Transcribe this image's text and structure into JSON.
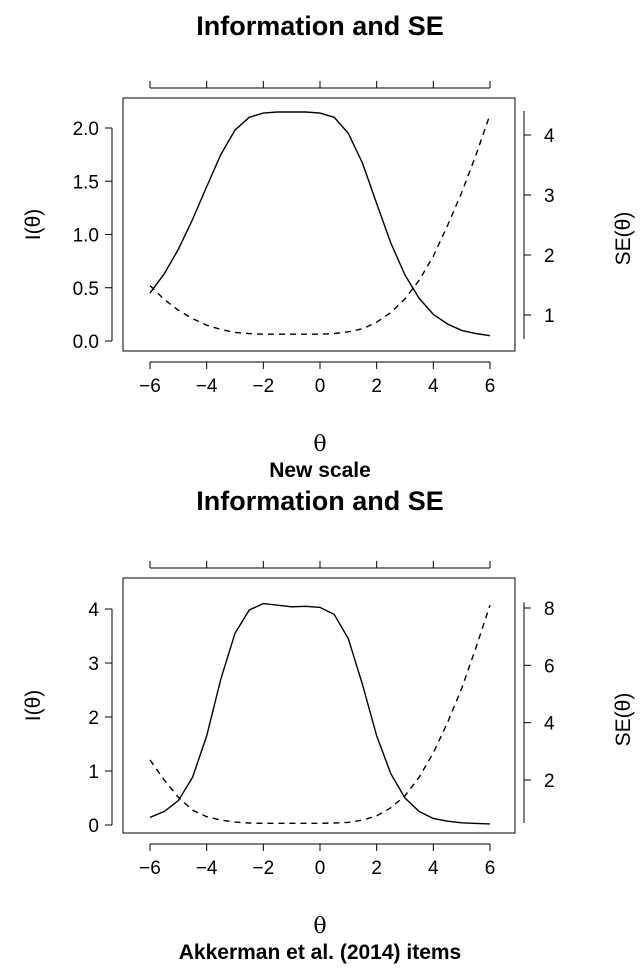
{
  "chart_data": [
    {
      "type": "line",
      "title": "Information and SE",
      "xlabel": "θ",
      "ylabel_left": "I(θ)",
      "ylabel_right": "SE(θ)",
      "caption": "New scale",
      "xlim": [
        -6,
        6
      ],
      "ylim_left": [
        0,
        2.1
      ],
      "ylim_right": [
        0.6,
        4.4
      ],
      "x_ticks": [
        "−6",
        "−4",
        "−2",
        "0",
        "2",
        "4",
        "6"
      ],
      "y_ticks_left": [
        "0.0",
        "0.5",
        "1.0",
        "1.5",
        "2.0"
      ],
      "y_ticks_right": [
        "1",
        "2",
        "3",
        "4"
      ],
      "grid": false,
      "series": [
        {
          "axis": "left",
          "style": "solid",
          "x": [
            -6,
            -5.5,
            -5,
            -4.5,
            -4,
            -3.5,
            -3,
            -2.5,
            -2,
            -1.5,
            -1,
            -0.5,
            0,
            0.5,
            1,
            1.5,
            2,
            2.5,
            3,
            3.5,
            4,
            4.5,
            5,
            5.5,
            6
          ],
          "y": [
            0.45,
            0.63,
            0.86,
            1.14,
            1.45,
            1.75,
            1.98,
            2.1,
            2.14,
            2.15,
            2.15,
            2.15,
            2.14,
            2.1,
            1.95,
            1.67,
            1.29,
            0.92,
            0.62,
            0.4,
            0.25,
            0.16,
            0.1,
            0.07,
            0.05
          ]
        },
        {
          "axis": "right",
          "style": "dashed",
          "x": [
            -6,
            -5.5,
            -5,
            -4.5,
            -4,
            -3.5,
            -3,
            -2.5,
            -2,
            -1.5,
            -1,
            -0.5,
            0,
            0.5,
            1,
            1.5,
            2,
            2.5,
            3,
            3.5,
            4,
            4.5,
            5,
            5.5,
            6
          ],
          "y": [
            1.49,
            1.26,
            1.08,
            0.94,
            0.83,
            0.76,
            0.71,
            0.69,
            0.68,
            0.68,
            0.68,
            0.68,
            0.68,
            0.69,
            0.72,
            0.77,
            0.88,
            1.04,
            1.27,
            1.58,
            1.98,
            2.49,
            3.04,
            3.66,
            4.34
          ]
        }
      ]
    },
    {
      "type": "line",
      "title": "Information and SE",
      "xlabel": "θ",
      "ylabel_left": "I(θ)",
      "ylabel_right": "SE(θ)",
      "caption": "Akkerman et al. (2014) items",
      "xlim": [
        -6,
        6
      ],
      "ylim_left": [
        0,
        4.1
      ],
      "ylim_right": [
        0.5,
        8.2
      ],
      "x_ticks": [
        "−6",
        "−4",
        "−2",
        "0",
        "2",
        "4",
        "6"
      ],
      "y_ticks_left": [
        "0",
        "1",
        "2",
        "3",
        "4"
      ],
      "y_ticks_right": [
        "2",
        "4",
        "6",
        "8"
      ],
      "grid": false,
      "series": [
        {
          "axis": "left",
          "style": "solid",
          "x": [
            -6,
            -5.5,
            -5,
            -4.5,
            -4,
            -3.5,
            -3,
            -2.5,
            -2,
            -1.5,
            -1,
            -0.5,
            0,
            0.5,
            1,
            1.5,
            2,
            2.5,
            3,
            3.5,
            4,
            4.5,
            5,
            5.5,
            6
          ],
          "y": [
            0.14,
            0.25,
            0.45,
            0.88,
            1.65,
            2.7,
            3.55,
            3.98,
            4.1,
            4.07,
            4.04,
            4.05,
            4.03,
            3.9,
            3.45,
            2.6,
            1.65,
            0.95,
            0.5,
            0.25,
            0.12,
            0.07,
            0.04,
            0.03,
            0.02
          ]
        },
        {
          "axis": "right",
          "style": "dashed",
          "x": [
            -6,
            -5.5,
            -5,
            -4.5,
            -4,
            -3.5,
            -3,
            -2.5,
            -2,
            -1.5,
            -1,
            -0.5,
            0,
            0.5,
            1,
            1.5,
            2,
            2.5,
            3,
            3.5,
            4,
            4.5,
            5,
            5.5,
            6
          ],
          "y": [
            2.7,
            2.0,
            1.4,
            0.95,
            0.72,
            0.6,
            0.53,
            0.5,
            0.49,
            0.49,
            0.49,
            0.49,
            0.49,
            0.5,
            0.52,
            0.6,
            0.75,
            1.03,
            1.45,
            2.1,
            2.95,
            4.0,
            5.2,
            6.6,
            8.1
          ]
        }
      ]
    }
  ]
}
